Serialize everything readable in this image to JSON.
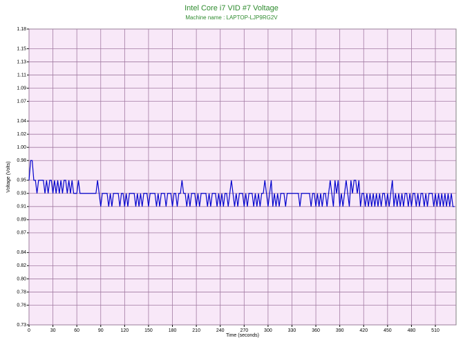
{
  "chart_data": {
    "type": "line",
    "title": "Intel Core i7 VID #7 Voltage",
    "subtitle": "Machine name : LAPTOP-LJP9RG2V",
    "x_label": "Time (seconds)",
    "y_label": "Voltage (Volts)",
    "color": "#0000cc",
    "background": "#f8e8f8",
    "grid": true,
    "xlim": [
      0,
      536
    ],
    "ylim": [
      0.73,
      1.18
    ],
    "xticks": [
      0,
      30,
      60,
      90,
      120,
      150,
      180,
      210,
      240,
      270,
      300,
      330,
      360,
      390,
      420,
      450,
      480,
      510
    ],
    "yticks": [
      {
        "value": 0.73,
        "label": "0.73"
      },
      {
        "value": 0.76,
        "label": "0.76"
      },
      {
        "value": 0.78,
        "label": "0.78"
      },
      {
        "value": 0.8,
        "label": "0.80"
      },
      {
        "value": 0.82,
        "label": "0.82"
      },
      {
        "value": 0.84,
        "label": "0.84"
      },
      {
        "value": 0.87,
        "label": "0.87"
      },
      {
        "value": 0.89,
        "label": "0.89"
      },
      {
        "value": 0.91,
        "label": "0.91"
      },
      {
        "value": 0.93,
        "label": "0.93"
      },
      {
        "value": 0.95,
        "label": "0.95"
      },
      {
        "value": 0.98,
        "label": "0.98"
      },
      {
        "value": 1.0,
        "label": "1.00"
      },
      {
        "value": 1.02,
        "label": "1.02"
      },
      {
        "value": 1.04,
        "label": "1.04"
      },
      {
        "value": 1.07,
        "label": "1.07"
      },
      {
        "value": 1.09,
        "label": "1.09"
      },
      {
        "value": 1.11,
        "label": "1.11"
      },
      {
        "value": 1.13,
        "label": "1.13"
      },
      {
        "value": 1.15,
        "label": "1.15"
      },
      {
        "value": 1.18,
        "label": "1.18"
      }
    ],
    "x": [
      0,
      2,
      4,
      6,
      8,
      10,
      12,
      14,
      16,
      18,
      20,
      22,
      24,
      26,
      28,
      30,
      32,
      34,
      36,
      38,
      40,
      42,
      44,
      46,
      48,
      50,
      52,
      54,
      56,
      58,
      60,
      62,
      64,
      66,
      68,
      70,
      72,
      74,
      76,
      78,
      80,
      82,
      84,
      86,
      88,
      90,
      92,
      94,
      96,
      98,
      100,
      102,
      104,
      106,
      108,
      110,
      112,
      114,
      116,
      118,
      120,
      122,
      124,
      126,
      128,
      130,
      132,
      134,
      136,
      138,
      140,
      142,
      144,
      146,
      148,
      150,
      152,
      154,
      156,
      158,
      160,
      162,
      164,
      166,
      168,
      170,
      172,
      174,
      176,
      178,
      180,
      182,
      184,
      186,
      188,
      190,
      192,
      194,
      196,
      198,
      200,
      202,
      204,
      206,
      208,
      210,
      212,
      214,
      216,
      218,
      220,
      222,
      224,
      226,
      228,
      230,
      232,
      234,
      236,
      238,
      240,
      242,
      244,
      246,
      248,
      250,
      252,
      254,
      256,
      258,
      260,
      262,
      264,
      266,
      268,
      270,
      272,
      274,
      276,
      278,
      280,
      282,
      284,
      286,
      288,
      290,
      292,
      294,
      296,
      298,
      300,
      302,
      304,
      306,
      308,
      310,
      312,
      314,
      316,
      318,
      320,
      322,
      324,
      326,
      328,
      330,
      332,
      334,
      336,
      338,
      340,
      342,
      344,
      346,
      348,
      350,
      352,
      354,
      356,
      358,
      360,
      362,
      364,
      366,
      368,
      370,
      372,
      374,
      376,
      378,
      380,
      382,
      384,
      386,
      388,
      390,
      392,
      394,
      396,
      398,
      400,
      402,
      404,
      406,
      408,
      410,
      412,
      414,
      416,
      418,
      420,
      422,
      424,
      426,
      428,
      430,
      432,
      434,
      436,
      438,
      440,
      442,
      444,
      446,
      448,
      450,
      452,
      454,
      456,
      458,
      460,
      462,
      464,
      466,
      468,
      470,
      472,
      474,
      476,
      478,
      480,
      482,
      484,
      486,
      488,
      490,
      492,
      494,
      496,
      498,
      500,
      502,
      504,
      506,
      508,
      510,
      512,
      514,
      516,
      518,
      520,
      522,
      524,
      526,
      528,
      530,
      532,
      534
    ],
    "values": [
      0.95,
      0.98,
      0.98,
      0.95,
      0.95,
      0.93,
      0.95,
      0.95,
      0.95,
      0.95,
      0.93,
      0.95,
      0.93,
      0.95,
      0.95,
      0.93,
      0.95,
      0.93,
      0.95,
      0.93,
      0.95,
      0.93,
      0.95,
      0.95,
      0.93,
      0.95,
      0.93,
      0.95,
      0.93,
      0.93,
      0.93,
      0.95,
      0.93,
      0.93,
      0.93,
      0.93,
      0.93,
      0.93,
      0.93,
      0.93,
      0.93,
      0.93,
      0.93,
      0.95,
      0.93,
      0.91,
      0.93,
      0.93,
      0.93,
      0.93,
      0.91,
      0.93,
      0.91,
      0.93,
      0.93,
      0.93,
      0.93,
      0.91,
      0.93,
      0.93,
      0.91,
      0.93,
      0.91,
      0.93,
      0.93,
      0.93,
      0.93,
      0.91,
      0.93,
      0.91,
      0.93,
      0.91,
      0.93,
      0.93,
      0.93,
      0.91,
      0.93,
      0.93,
      0.93,
      0.93,
      0.91,
      0.93,
      0.91,
      0.93,
      0.93,
      0.93,
      0.91,
      0.93,
      0.93,
      0.93,
      0.91,
      0.93,
      0.93,
      0.91,
      0.93,
      0.93,
      0.95,
      0.93,
      0.93,
      0.91,
      0.93,
      0.91,
      0.93,
      0.93,
      0.93,
      0.91,
      0.93,
      0.91,
      0.93,
      0.93,
      0.93,
      0.93,
      0.91,
      0.93,
      0.91,
      0.93,
      0.93,
      0.93,
      0.91,
      0.93,
      0.91,
      0.93,
      0.91,
      0.93,
      0.93,
      0.91,
      0.93,
      0.95,
      0.93,
      0.91,
      0.93,
      0.91,
      0.93,
      0.93,
      0.93,
      0.91,
      0.93,
      0.91,
      0.93,
      0.93,
      0.93,
      0.91,
      0.93,
      0.91,
      0.93,
      0.91,
      0.93,
      0.93,
      0.95,
      0.93,
      0.91,
      0.93,
      0.95,
      0.91,
      0.93,
      0.91,
      0.93,
      0.91,
      0.93,
      0.93,
      0.93,
      0.91,
      0.93,
      0.93,
      0.93,
      0.93,
      0.93,
      0.93,
      0.93,
      0.93,
      0.91,
      0.93,
      0.93,
      0.93,
      0.93,
      0.93,
      0.93,
      0.91,
      0.93,
      0.93,
      0.91,
      0.93,
      0.91,
      0.93,
      0.91,
      0.93,
      0.93,
      0.91,
      0.93,
      0.95,
      0.93,
      0.91,
      0.95,
      0.93,
      0.95,
      0.91,
      0.93,
      0.91,
      0.93,
      0.95,
      0.93,
      0.91,
      0.95,
      0.93,
      0.95,
      0.95,
      0.93,
      0.95,
      0.91,
      0.93,
      0.93,
      0.91,
      0.93,
      0.91,
      0.93,
      0.91,
      0.93,
      0.91,
      0.93,
      0.91,
      0.93,
      0.91,
      0.93,
      0.93,
      0.91,
      0.93,
      0.91,
      0.93,
      0.95,
      0.91,
      0.93,
      0.91,
      0.93,
      0.91,
      0.93,
      0.91,
      0.93,
      0.93,
      0.91,
      0.93,
      0.91,
      0.93,
      0.93,
      0.91,
      0.93,
      0.91,
      0.93,
      0.93,
      0.91,
      0.93,
      0.91,
      0.93,
      0.93,
      0.93,
      0.91,
      0.93,
      0.91,
      0.93,
      0.91,
      0.93,
      0.91,
      0.93,
      0.91,
      0.93,
      0.91,
      0.93,
      0.91,
      0.91
    ]
  }
}
